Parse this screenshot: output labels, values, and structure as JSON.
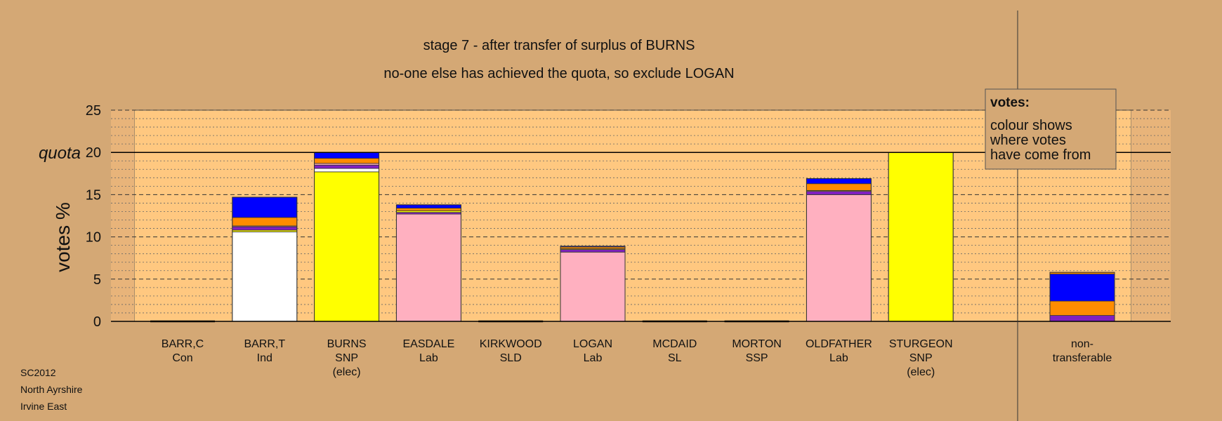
{
  "chart_data": {
    "type": "bar",
    "stacked": true,
    "title": "stage 7 - after transfer of surplus of BURNS",
    "subtitle": "no-one else has achieved the quota, so exclude LOGAN",
    "ylabel": "votes %",
    "ylim": [
      0,
      25
    ],
    "yticks": [
      0,
      5,
      10,
      15,
      20,
      25
    ],
    "quota": {
      "label": "quota",
      "value": 20
    },
    "grid": true,
    "legend": {
      "title": "votes:",
      "lines": [
        "colour shows",
        "where votes",
        "have come from"
      ],
      "placement": "top-right"
    },
    "colors": {
      "Con": "#2040ff",
      "Ind": "#ffffff",
      "SNP": "#ffff00",
      "Lab": "#ffb0c0",
      "transfer_purple": "#8020c0",
      "transfer_orange": "#ff8c00",
      "transfer_blue": "#0000ff",
      "transfer_pink": "#ffb0c0",
      "transfer_yellow": "#ffff00"
    },
    "candidates": [
      {
        "name": "BARR,C",
        "party": "Con",
        "note": "",
        "segments": []
      },
      {
        "name": "BARR,T",
        "party": "Ind",
        "note": "",
        "segments": [
          {
            "source": "Ind",
            "value": 10.6,
            "color": "#ffffff"
          },
          {
            "source": "SNP",
            "value": 0.2,
            "color": "#ffff00"
          },
          {
            "source": "other",
            "value": 0.4,
            "color": "#8020c0"
          },
          {
            "source": "Lab",
            "value": 0.1,
            "color": "#ffb0c0"
          },
          {
            "source": "other",
            "value": 1.0,
            "color": "#ff8c00"
          },
          {
            "source": "other",
            "value": 2.4,
            "color": "#0000ff"
          }
        ]
      },
      {
        "name": "BURNS",
        "party": "SNP",
        "note": "(elec)",
        "segments": [
          {
            "source": "SNP",
            "value": 17.7,
            "color": "#ffff00"
          },
          {
            "source": "Ind",
            "value": 0.4,
            "color": "#ffffff"
          },
          {
            "source": "other",
            "value": 0.4,
            "color": "#8020c0"
          },
          {
            "source": "Lab",
            "value": 0.2,
            "color": "#ffb0c0"
          },
          {
            "source": "other",
            "value": 0.6,
            "color": "#ff8c00"
          },
          {
            "source": "other",
            "value": 0.7,
            "color": "#0000ff"
          }
        ]
      },
      {
        "name": "EASDALE",
        "party": "Lab",
        "note": "",
        "segments": [
          {
            "source": "Lab",
            "value": 12.7,
            "color": "#ffb0c0"
          },
          {
            "source": "other",
            "value": 0.2,
            "color": "#8020c0"
          },
          {
            "source": "SNP",
            "value": 0.2,
            "color": "#ffff00"
          },
          {
            "source": "other",
            "value": 0.3,
            "color": "#ff8c00"
          },
          {
            "source": "other",
            "value": 0.4,
            "color": "#0000ff"
          }
        ]
      },
      {
        "name": "KIRKWOOD",
        "party": "SLD",
        "note": "",
        "segments": []
      },
      {
        "name": "LOGAN",
        "party": "Lab",
        "note": "",
        "segments": [
          {
            "source": "Lab",
            "value": 8.2,
            "color": "#ffb0c0"
          },
          {
            "source": "other",
            "value": 0.3,
            "color": "#8020c0"
          },
          {
            "source": "SNP",
            "value": 0.1,
            "color": "#ffff00"
          },
          {
            "source": "other",
            "value": 0.2,
            "color": "#ff8c00"
          },
          {
            "source": "other",
            "value": 0.1,
            "color": "#0000ff"
          }
        ]
      },
      {
        "name": "MCDAID",
        "party": "SL",
        "note": "",
        "segments": []
      },
      {
        "name": "MORTON",
        "party": "SSP",
        "note": "",
        "segments": []
      },
      {
        "name": "OLDFATHER",
        "party": "Lab",
        "note": "",
        "segments": [
          {
            "source": "Lab",
            "value": 15.0,
            "color": "#ffb0c0"
          },
          {
            "source": "other",
            "value": 0.4,
            "color": "#8020c0"
          },
          {
            "source": "SNP",
            "value": 0.1,
            "color": "#ffff00"
          },
          {
            "source": "other",
            "value": 0.8,
            "color": "#ff8c00"
          },
          {
            "source": "other",
            "value": 0.6,
            "color": "#0000ff"
          }
        ]
      },
      {
        "name": "STURGEON",
        "party": "SNP",
        "note": "(elec)",
        "segments": [
          {
            "source": "SNP",
            "value": 20.0,
            "color": "#ffff00"
          }
        ]
      }
    ],
    "non_transferable": {
      "name": "non-",
      "party": "transferable",
      "segments": [
        {
          "source": "other",
          "value": 0.7,
          "color": "#8020c0"
        },
        {
          "source": "other",
          "value": 1.7,
          "color": "#ff8c00"
        },
        {
          "source": "other",
          "value": 3.2,
          "color": "#0000ff"
        },
        {
          "source": "other",
          "value": 0.2,
          "color": "#ff8c00"
        }
      ]
    }
  },
  "footer": {
    "line1": "SC2012",
    "line2": "North Ayrshire",
    "line3": "Irvine East"
  }
}
